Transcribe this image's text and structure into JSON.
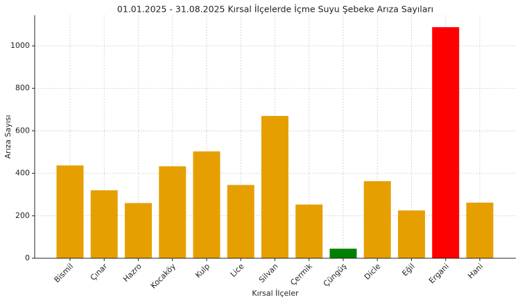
{
  "chart_data": {
    "type": "bar",
    "title": "01.01.2025 - 31.08.2025 Kırsal İlçelerde İçme Suyu Şebeke Arıza Sayıları",
    "x_label": "Kırsal İlçeler",
    "y_label": "Arıza Sayısı",
    "categories": [
      "Bismil",
      "Çınar",
      "Hazro",
      "Kocaköy",
      "Kulp",
      "Lice",
      "Silvan",
      "Çermik",
      "Çüngüş",
      "Dicle",
      "Eğil",
      "Ergani",
      "Hani"
    ],
    "values": [
      437,
      320,
      260,
      433,
      503,
      345,
      670,
      253,
      45,
      363,
      225,
      1088,
      262
    ],
    "colors": [
      "#e69f00",
      "#e69f00",
      "#e69f00",
      "#e69f00",
      "#e69f00",
      "#e69f00",
      "#e69f00",
      "#e69f00",
      "#008000",
      "#e69f00",
      "#e69f00",
      "#ff0000",
      "#e69f00"
    ],
    "ylim": [
      0,
      1144
    ],
    "yticks": [
      0,
      200,
      400,
      600,
      800,
      1000
    ],
    "grid": true
  }
}
